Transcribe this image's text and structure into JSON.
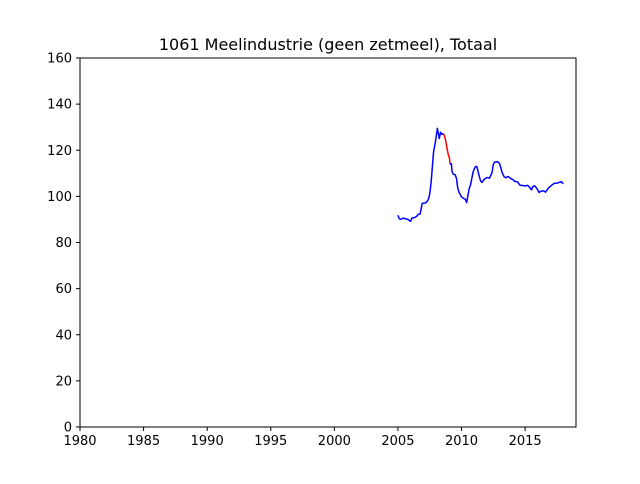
{
  "chart_data": {
    "type": "line",
    "title": "1061 Meelindustrie (geen zetmeel), Totaal",
    "xlabel": "",
    "ylabel": "",
    "xlim": [
      1980,
      2019
    ],
    "ylim": [
      0,
      160
    ],
    "x_ticks": [
      1980,
      1985,
      1990,
      1995,
      2000,
      2005,
      2010,
      2015
    ],
    "y_ticks": [
      0,
      20,
      40,
      60,
      80,
      100,
      120,
      140,
      160
    ],
    "grid": false,
    "colors": {
      "main": "#0000ff",
      "highlight": "#ff0000"
    },
    "series": [
      {
        "color": "#0000ff",
        "x": [
          2005.0,
          2005.1,
          2005.25,
          2005.4,
          2005.6,
          2005.8,
          2005.9,
          2006.0,
          2006.1,
          2006.3,
          2006.5,
          2006.6,
          2006.75,
          2006.9,
          2007.0,
          2007.15,
          2007.3,
          2007.4,
          2007.5,
          2007.6,
          2007.7,
          2007.8,
          2007.9,
          2008.0,
          2008.1,
          2008.2,
          2008.25,
          2008.35,
          2008.45,
          2008.55
        ],
        "y": [
          91.8,
          90.3,
          90.0,
          90.6,
          90.3,
          90.0,
          89.5,
          89.2,
          90.6,
          90.8,
          91.5,
          92.2,
          92.4,
          96.9,
          97.1,
          97.1,
          97.8,
          98.8,
          101.1,
          105.6,
          112.4,
          119.3,
          122.2,
          125.6,
          129.5,
          126.7,
          125.1,
          127.8,
          126.9,
          127.3
        ]
      },
      {
        "color": "#ff0000",
        "x": [
          2008.55,
          2008.65,
          2008.75,
          2008.85,
          2008.95,
          2009.05,
          2009.1
        ],
        "y": [
          127.3,
          126.4,
          124.3,
          121.0,
          118.3,
          116.6,
          113.9
        ]
      },
      {
        "color": "#0000ff",
        "x": [
          2009.1,
          2009.2,
          2009.25,
          2009.35,
          2009.5,
          2009.6,
          2009.7,
          2009.8,
          2009.9,
          2010.0,
          2010.1,
          2010.2,
          2010.3,
          2010.4,
          2010.5,
          2010.6,
          2010.7,
          2010.8,
          2010.9,
          2011.0,
          2011.1,
          2011.2,
          2011.3,
          2011.4,
          2011.5,
          2011.6,
          2011.7,
          2011.8,
          2012.0,
          2012.2,
          2012.4,
          2012.5,
          2012.6,
          2012.75,
          2012.85,
          2013.0,
          2013.2,
          2013.35,
          2013.5,
          2013.65,
          2013.75,
          2013.85,
          2014.0,
          2014.2,
          2014.4,
          2014.6,
          2014.8,
          2015.0,
          2015.2,
          2015.4,
          2015.5,
          2015.6,
          2015.75,
          2015.9,
          2016.0,
          2016.1,
          2016.2,
          2016.35,
          2016.5,
          2016.6,
          2016.75,
          2016.85,
          2017.0,
          2017.15,
          2017.3,
          2017.5,
          2017.7,
          2017.85,
          2018.0
        ],
        "y": [
          113.9,
          114.2,
          110.9,
          109.6,
          109.4,
          107.8,
          103.7,
          101.8,
          100.9,
          99.7,
          99.4,
          99.0,
          98.7,
          97.3,
          100.3,
          103.4,
          104.8,
          107.5,
          110.4,
          111.9,
          112.9,
          113.0,
          110.8,
          108.6,
          106.7,
          106.1,
          106.7,
          107.5,
          108.2,
          107.9,
          110.4,
          113.9,
          114.9,
          114.9,
          115.0,
          114.1,
          110.2,
          108.5,
          108.1,
          108.6,
          108.3,
          107.8,
          107.4,
          106.5,
          106.3,
          104.8,
          104.7,
          104.5,
          104.8,
          103.6,
          102.8,
          104.2,
          104.6,
          103.6,
          102.7,
          101.7,
          102.1,
          102.4,
          102.3,
          101.8,
          103.0,
          103.7,
          104.4,
          105.1,
          105.7,
          105.7,
          106.1,
          106.4,
          105.4
        ]
      }
    ]
  }
}
